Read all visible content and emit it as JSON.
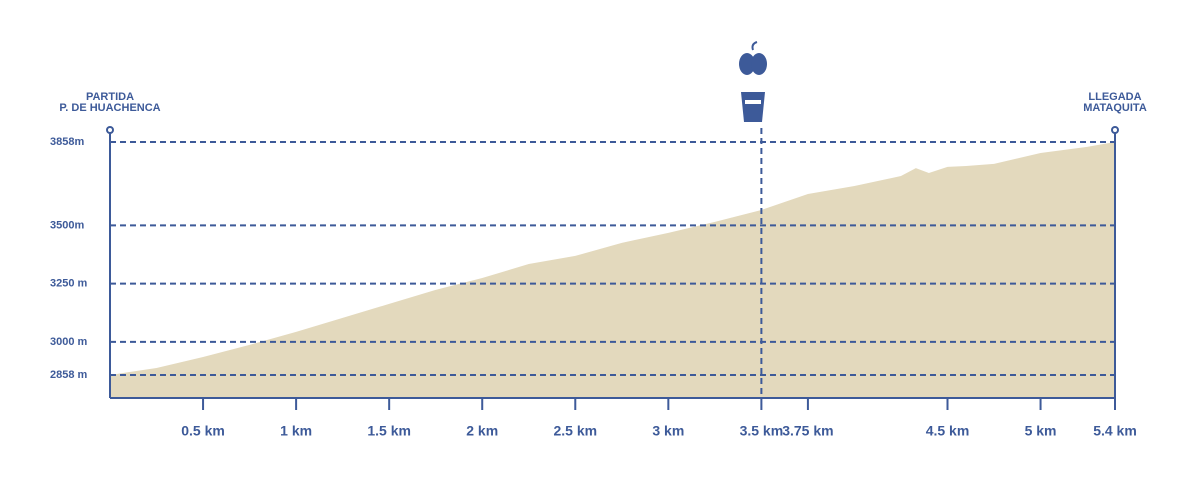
{
  "chart_data": {
    "type": "area",
    "start_label": [
      "PARTIDA",
      "P. DE HUACHENCA"
    ],
    "end_label": [
      "LLEGADA",
      "MATAQUITA"
    ],
    "x": [
      0,
      0.25,
      0.5,
      0.75,
      1,
      1.25,
      1.5,
      1.75,
      2,
      2.25,
      2.5,
      2.75,
      3,
      3.25,
      3.5,
      3.75,
      4,
      4.25,
      4.33,
      4.4,
      4.5,
      4.6,
      4.75,
      5,
      5.25,
      5.4
    ],
    "values": [
      2858,
      2888,
      2935,
      2987,
      3043,
      3103,
      3163,
      3223,
      3274,
      3334,
      3369,
      3425,
      3468,
      3515,
      3566,
      3635,
      3669,
      3712,
      3746,
      3725,
      3751,
      3755,
      3764,
      3811,
      3837,
      3858
    ],
    "color": "#e3d9bd",
    "axis_color": "#3d5a99",
    "aid_station_x": 3.5,
    "xlim": [
      0,
      5.4
    ],
    "xticks": [
      {
        "value": 0.5,
        "label": "0.5 km"
      },
      {
        "value": 1,
        "label": "1 km"
      },
      {
        "value": 1.5,
        "label": "1.5 km"
      },
      {
        "value": 2,
        "label": "2 km"
      },
      {
        "value": 2.5,
        "label": "2.5 km"
      },
      {
        "value": 3,
        "label": "3 km"
      },
      {
        "value": 3.5,
        "label": "3.5 km"
      },
      {
        "value": 3.75,
        "label": "3.75 km"
      },
      {
        "value": 4.5,
        "label": "4.5 km"
      },
      {
        "value": 5,
        "label": "5 km"
      },
      {
        "value": 5.4,
        "label": "5.4 km"
      }
    ],
    "ylim": [
      2759,
      3858
    ],
    "yticks": [
      {
        "value": 3858,
        "label": "3858m"
      },
      {
        "value": 3500,
        "label": "3500m"
      },
      {
        "value": 3250,
        "label": "3250 m"
      },
      {
        "value": 3000,
        "label": "3000 m"
      },
      {
        "value": 2858,
        "label": "2858 m"
      }
    ],
    "grid": true
  }
}
